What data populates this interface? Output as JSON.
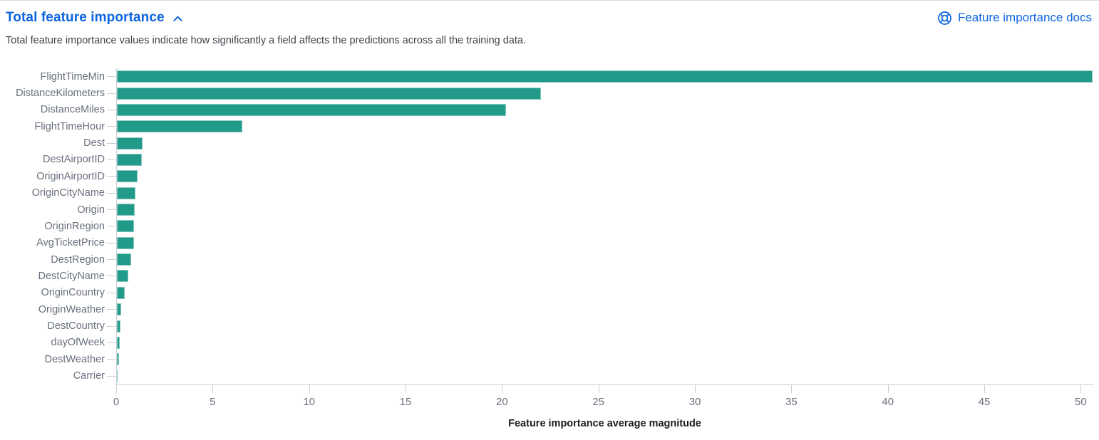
{
  "header": {
    "title": "Total feature importance",
    "collapse_icon": "chevron-up-icon",
    "docs_link_label": "Feature importance docs",
    "docs_icon": "help-lifering-icon"
  },
  "description": "Total feature importance values indicate how significantly a field affects the predictions across all the training data.",
  "colors": {
    "link_blue": "#0b64dd",
    "bar_teal": "#219a89",
    "axis_text": "#69707d",
    "axis_line": "#c9cfd9",
    "description_text": "#3f434c",
    "axis_title_text": "#1a1c21",
    "panel_border": "#d3dae6"
  },
  "chart_data": {
    "type": "bar",
    "orientation": "horizontal",
    "title": "",
    "categories": [
      "FlightTimeMin",
      "DistanceKilometers",
      "DistanceMiles",
      "FlightTimeHour",
      "Dest",
      "DestAirportID",
      "OriginAirportID",
      "OriginCityName",
      "Origin",
      "OriginRegion",
      "AvgTicketPrice",
      "DestRegion",
      "DestCityName",
      "OriginCountry",
      "OriginWeather",
      "DestCountry",
      "dayOfWeek",
      "DestWeather",
      "Carrier"
    ],
    "values": [
      50.6,
      22.0,
      20.2,
      6.5,
      1.34,
      1.31,
      1.06,
      0.97,
      0.93,
      0.9,
      0.87,
      0.73,
      0.59,
      0.41,
      0.22,
      0.18,
      0.16,
      0.12,
      0.05
    ],
    "xlabel": "Feature importance average magnitude",
    "ylabel": "",
    "x_ticks": [
      0,
      5,
      10,
      15,
      20,
      25,
      30,
      35,
      40,
      45,
      50
    ],
    "xlim": [
      0,
      50.65
    ],
    "bar_color": "#219a89",
    "grid": false,
    "legend": false
  }
}
